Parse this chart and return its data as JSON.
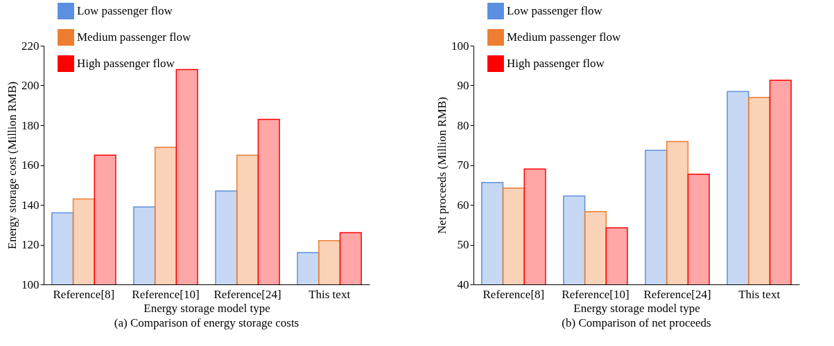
{
  "chart_data": [
    {
      "type": "bar",
      "title": "(a) Comparison of energy storage costs",
      "xlabel": "Energy storage model type",
      "ylabel": "Energy storage cost (Million RMB)",
      "categories": [
        "Reference[8]",
        "Reference[10]",
        "Reference[24]",
        "This text"
      ],
      "series": [
        {
          "name": "Low passenger flow",
          "color": "#5b8fe0",
          "values": [
            136,
            139,
            147,
            116
          ]
        },
        {
          "name": "Medium passenger flow",
          "color": "#ed7d31",
          "values": [
            143,
            169,
            165,
            122
          ]
        },
        {
          "name": "High passenger flow",
          "color": "#ff0000",
          "values": [
            165,
            208,
            183,
            126
          ]
        }
      ],
      "ylim": [
        100,
        220
      ],
      "yticks": [
        100,
        120,
        140,
        160,
        180,
        200,
        220
      ],
      "legend": "top left"
    },
    {
      "type": "bar",
      "title": "(b) Comparison of net proceeds",
      "xlabel": "Energy storage model type",
      "ylabel": "Net proceeds (Million RMB)",
      "categories": [
        "Reference[8]",
        "Reference[10]",
        "Reference[24]",
        "This text"
      ],
      "series": [
        {
          "name": "Low passenger flow",
          "color": "#5b8fe0",
          "values": [
            65.6,
            62.2,
            73.7,
            88.5
          ]
        },
        {
          "name": "Medium passenger flow",
          "color": "#ed7d31",
          "values": [
            64.2,
            58.3,
            75.9,
            87
          ]
        },
        {
          "name": "High passenger flow",
          "color": "#ff0000",
          "values": [
            69,
            54.2,
            67.7,
            91.3
          ]
        }
      ],
      "ylim": [
        40,
        100
      ],
      "yticks": [
        40,
        50,
        60,
        70,
        80,
        90,
        100
      ],
      "legend": "top left"
    }
  ]
}
